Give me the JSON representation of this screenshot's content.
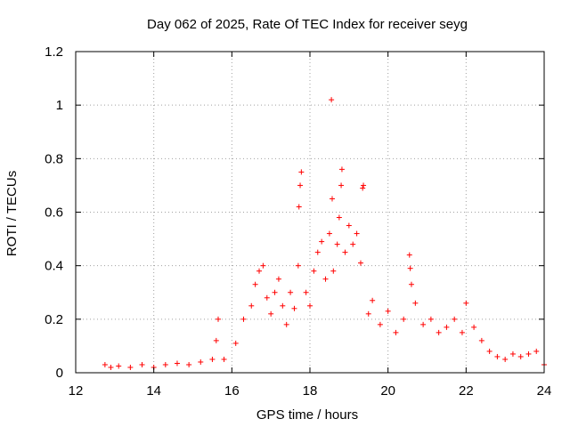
{
  "chart_data": {
    "type": "scatter",
    "title": "Day 062 of 2025, Rate Of TEC Index for receiver seyg",
    "xlabel": "GPS time / hours",
    "ylabel": "ROTI / TECUs",
    "xlim": [
      12,
      24
    ],
    "ylim": [
      0,
      1.2
    ],
    "xticks": [
      "12",
      "14",
      "16",
      "18",
      "20",
      "22",
      "24"
    ],
    "yticks": [
      "0",
      "0.2",
      "0.4",
      "0.6",
      "0.8",
      "1",
      "1.2"
    ],
    "grid": true,
    "marker": "+",
    "color": "#ff0000",
    "series": [
      {
        "points": [
          [
            12.75,
            0.03
          ],
          [
            12.9,
            0.02
          ],
          [
            13.1,
            0.025
          ],
          [
            13.4,
            0.02
          ],
          [
            13.7,
            0.03
          ],
          [
            14.0,
            0.02
          ],
          [
            14.3,
            0.03
          ],
          [
            14.6,
            0.035
          ],
          [
            14.9,
            0.03
          ],
          [
            15.2,
            0.04
          ],
          [
            15.5,
            0.05
          ],
          [
            15.65,
            0.2
          ],
          [
            15.6,
            0.12
          ],
          [
            15.8,
            0.05
          ],
          [
            16.1,
            0.11
          ],
          [
            16.3,
            0.2
          ],
          [
            16.5,
            0.25
          ],
          [
            16.6,
            0.33
          ],
          [
            16.7,
            0.38
          ],
          [
            16.8,
            0.4
          ],
          [
            16.9,
            0.28
          ],
          [
            17.0,
            0.22
          ],
          [
            17.1,
            0.3
          ],
          [
            17.2,
            0.35
          ],
          [
            17.3,
            0.25
          ],
          [
            17.4,
            0.18
          ],
          [
            17.5,
            0.3
          ],
          [
            17.6,
            0.24
          ],
          [
            17.7,
            0.4
          ],
          [
            17.72,
            0.62
          ],
          [
            17.75,
            0.7
          ],
          [
            17.78,
            0.75
          ],
          [
            17.9,
            0.3
          ],
          [
            18.0,
            0.25
          ],
          [
            18.1,
            0.38
          ],
          [
            18.2,
            0.45
          ],
          [
            18.3,
            0.49
          ],
          [
            18.4,
            0.35
          ],
          [
            18.5,
            0.52
          ],
          [
            18.55,
            1.02
          ],
          [
            18.57,
            0.65
          ],
          [
            18.6,
            0.38
          ],
          [
            18.7,
            0.48
          ],
          [
            18.75,
            0.58
          ],
          [
            18.8,
            0.7
          ],
          [
            18.82,
            0.76
          ],
          [
            18.9,
            0.45
          ],
          [
            19.0,
            0.55
          ],
          [
            19.1,
            0.48
          ],
          [
            19.2,
            0.52
          ],
          [
            19.3,
            0.41
          ],
          [
            19.35,
            0.69
          ],
          [
            19.37,
            0.7
          ],
          [
            19.5,
            0.22
          ],
          [
            19.6,
            0.27
          ],
          [
            19.8,
            0.18
          ],
          [
            20.0,
            0.23
          ],
          [
            20.2,
            0.15
          ],
          [
            20.4,
            0.2
          ],
          [
            20.55,
            0.44
          ],
          [
            20.57,
            0.39
          ],
          [
            20.6,
            0.33
          ],
          [
            20.7,
            0.26
          ],
          [
            20.9,
            0.18
          ],
          [
            21.1,
            0.2
          ],
          [
            21.3,
            0.15
          ],
          [
            21.5,
            0.17
          ],
          [
            21.7,
            0.2
          ],
          [
            21.9,
            0.15
          ],
          [
            22.0,
            0.26
          ],
          [
            22.2,
            0.17
          ],
          [
            22.4,
            0.12
          ],
          [
            22.6,
            0.08
          ],
          [
            22.8,
            0.06
          ],
          [
            23.0,
            0.05
          ],
          [
            23.2,
            0.07
          ],
          [
            23.4,
            0.06
          ],
          [
            23.6,
            0.07
          ],
          [
            23.8,
            0.08
          ],
          [
            24.0,
            0.03
          ]
        ]
      }
    ]
  }
}
